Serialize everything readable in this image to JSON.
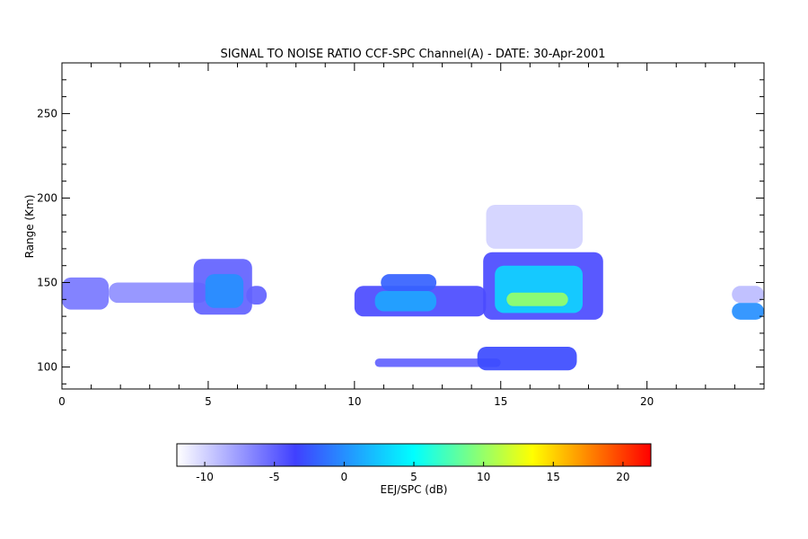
{
  "chart_data": {
    "type": "heatmap",
    "title": "SIGNAL TO NOISE RATIO CCF-SPC Channel(A) - DATE: 30-Apr-2001",
    "xlabel": "",
    "ylabel": "Range (Km)",
    "xlim": [
      0,
      24
    ],
    "ylim": [
      87,
      280
    ],
    "x_ticks": [
      0,
      5,
      10,
      15,
      20
    ],
    "y_ticks": [
      100,
      150,
      200,
      250
    ],
    "grid": false,
    "colorbar": {
      "label": "EEJ/SPC (dB)",
      "range": [
        -12,
        22
      ],
      "ticks": [
        -10,
        -5,
        0,
        5,
        10,
        15,
        20
      ],
      "colors": [
        "#ffffff",
        "#4040ff",
        "#00ffff",
        "#ffff00",
        "#ff0000"
      ]
    },
    "regions": [
      {
        "x": [
          0,
          1.6
        ],
        "y": [
          134,
          153
        ],
        "snr_db": -6
      },
      {
        "x": [
          1.6,
          5
        ],
        "y": [
          138,
          150
        ],
        "snr_db": -7
      },
      {
        "x": [
          4.5,
          6.5
        ],
        "y": [
          131,
          164
        ],
        "snr_db": -5
      },
      {
        "x": [
          4.9,
          6.2
        ],
        "y": [
          135,
          155
        ],
        "snr_db": 0
      },
      {
        "x": [
          6.3,
          7.0
        ],
        "y": [
          137,
          148
        ],
        "snr_db": -5
      },
      {
        "x": [
          10.0,
          14.5
        ],
        "y": [
          130,
          148
        ],
        "snr_db": -4
      },
      {
        "x": [
          10.7,
          12.8
        ],
        "y": [
          133,
          145
        ],
        "snr_db": 1
      },
      {
        "x": [
          10.9,
          12.8
        ],
        "y": [
          145,
          155
        ],
        "snr_db": -2
      },
      {
        "x": [
          14.4,
          18.5
        ],
        "y": [
          128,
          168
        ],
        "snr_db": -4
      },
      {
        "x": [
          14.8,
          17.8
        ],
        "y": [
          132,
          160
        ],
        "snr_db": 3
      },
      {
        "x": [
          15.2,
          17.3
        ],
        "y": [
          136,
          144
        ],
        "snr_db": 10
      },
      {
        "x": [
          14.5,
          17.8
        ],
        "y": [
          170,
          196
        ],
        "snr_db": -10
      },
      {
        "x": [
          10.7,
          15.0
        ],
        "y": [
          100,
          105
        ],
        "snr_db": -5
      },
      {
        "x": [
          14.2,
          17.6
        ],
        "y": [
          98,
          112
        ],
        "snr_db": -3
      },
      {
        "x": [
          22.9,
          24
        ],
        "y": [
          128,
          138
        ],
        "snr_db": 0
      },
      {
        "x": [
          22.9,
          24
        ],
        "y": [
          138,
          148
        ],
        "snr_db": -9
      }
    ]
  }
}
